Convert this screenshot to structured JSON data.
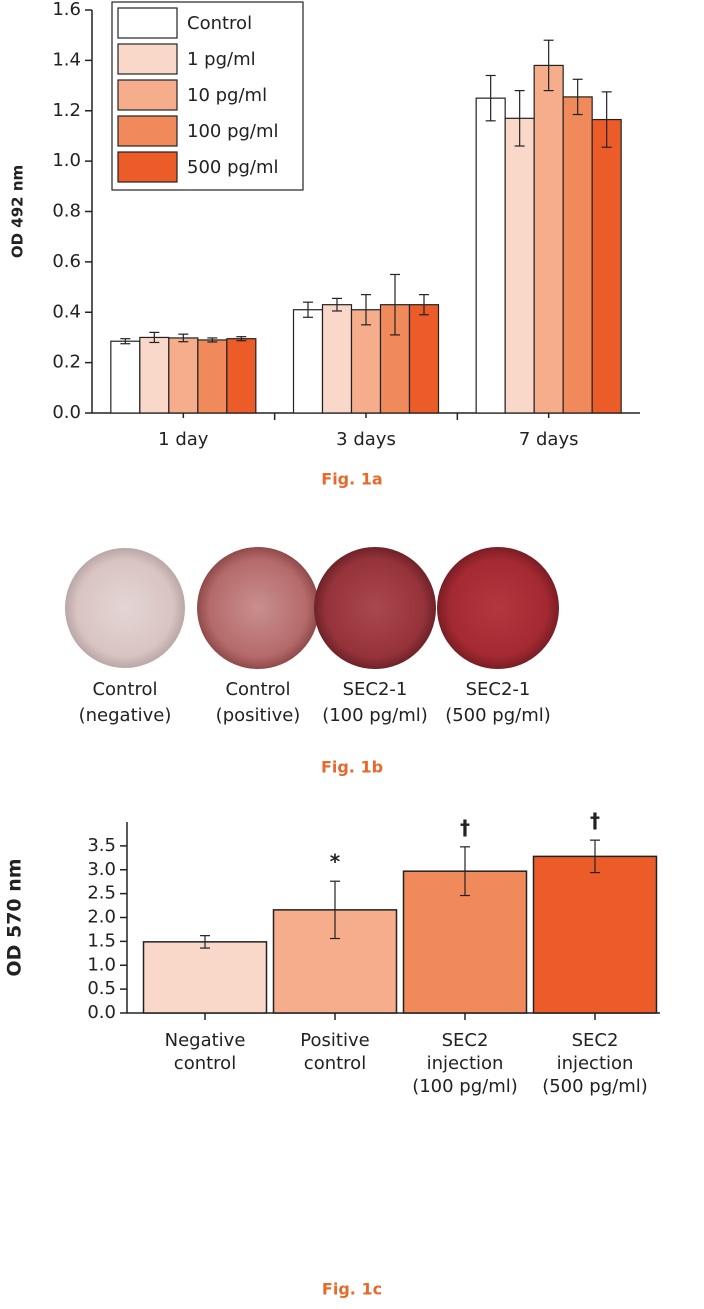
{
  "chart_data": [
    {
      "type": "bar",
      "caption": "Fig. 1a",
      "ylabel": "OD 492 nm",
      "categories": [
        "1 day",
        "3 days",
        "7 days"
      ],
      "series": [
        {
          "name": "Control",
          "color": "#ffffff",
          "values": [
            0.285,
            0.41,
            1.25
          ],
          "errors": [
            0.01,
            0.03,
            0.09
          ]
        },
        {
          "name": "1 pg/ml",
          "color": "#f9d8c9",
          "values": [
            0.3,
            0.43,
            1.17
          ],
          "errors": [
            0.02,
            0.025,
            0.11
          ]
        },
        {
          "name": "10 pg/ml",
          "color": "#f6ad8b",
          "values": [
            0.298,
            0.41,
            1.38
          ],
          "errors": [
            0.015,
            0.06,
            0.1
          ]
        },
        {
          "name": "100 pg/ml",
          "color": "#f08a5a",
          "values": [
            0.29,
            0.43,
            1.255
          ],
          "errors": [
            0.008,
            0.12,
            0.07
          ]
        },
        {
          "name": "500 pg/ml",
          "color": "#eb5c28",
          "values": [
            0.295,
            0.43,
            1.165
          ],
          "errors": [
            0.008,
            0.04,
            0.11
          ]
        }
      ],
      "ylim": [
        0,
        1.6
      ],
      "yticks": [
        {
          "value": 0,
          "label": "0.0"
        },
        0.2,
        0.4,
        0.6,
        0.8,
        {
          "value": 1,
          "label": "1.0"
        },
        1.2,
        1.4,
        1.6
      ],
      "legend": "upper left"
    },
    {
      "type": "bar",
      "caption": "Fig. 1c",
      "ylabel": "OD 570 nm",
      "categories": [
        "Negative control",
        "Positive control",
        "SEC2 injection (100 pg/ml)",
        "SEC2 injection (500 pg/ml)"
      ],
      "values": [
        1.49,
        2.16,
        2.97,
        3.28
      ],
      "errors": [
        0.13,
        0.6,
        0.51,
        0.34
      ],
      "colors": [
        "#f9d8c9",
        "#f6ad8b",
        "#f08a5a",
        "#eb5c28"
      ],
      "annotations": [
        {
          "category": "Positive control",
          "text": "*"
        },
        {
          "category": "SEC2 injection (100 pg/ml)",
          "text": "†"
        },
        {
          "category": "SEC2 injection (500 pg/ml)",
          "text": "†"
        }
      ],
      "ylim": [
        0,
        4
      ],
      "yticks": [
        {
          "value": 0,
          "label": "0.0"
        },
        0.5,
        {
          "value": 1,
          "label": "1.0"
        },
        1.5,
        {
          "value": 2,
          "label": "2.0"
        },
        2.5,
        {
          "value": 3,
          "label": "3.0"
        },
        3.5
      ]
    }
  ],
  "plates": {
    "caption": "Fig. 1b",
    "labels": [
      [
        "Control",
        "(negative)"
      ],
      [
        "Control",
        "(positive)"
      ],
      [
        "SEC2-1",
        "(100 pg/ml)"
      ],
      [
        "SEC2-1",
        "(500 pg/ml)"
      ]
    ]
  }
}
